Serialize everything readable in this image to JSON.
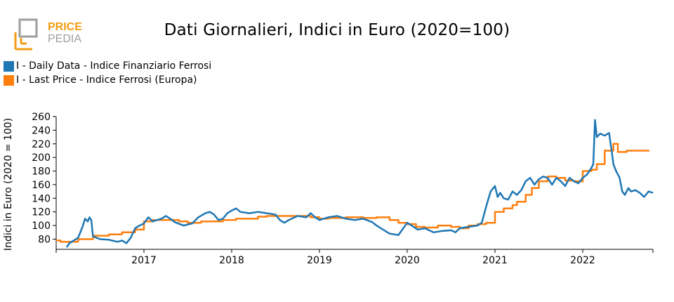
{
  "logo": {
    "word1": "PRICE",
    "word2": "PEDIA"
  },
  "chart_data": {
    "type": "line",
    "title": "Dati Giornalieri, Indici in Euro (2020=100)",
    "xlabel": "",
    "ylabel": "Indici in Euro (2020 = 100)",
    "ylim": [
      65,
      260
    ],
    "yticks": [
      80,
      100,
      120,
      140,
      160,
      180,
      200,
      220,
      240,
      260
    ],
    "xlim": [
      2016.0,
      2022.8
    ],
    "xticks": [
      2017,
      2018,
      2019,
      2020,
      2021,
      2022
    ],
    "xtick_labels": [
      "2017",
      "2018",
      "2019",
      "2020",
      "2021",
      "2022"
    ],
    "grid": false,
    "legend_position": "top-left",
    "series": [
      {
        "name": "I - Daily Data - Indice Finanziario Ferrosi",
        "color": "#1f77b4",
        "style": "line",
        "points": [
          [
            2016.12,
            68
          ],
          [
            2016.15,
            74
          ],
          [
            2016.2,
            78
          ],
          [
            2016.25,
            82
          ],
          [
            2016.3,
            98
          ],
          [
            2016.33,
            110
          ],
          [
            2016.36,
            106
          ],
          [
            2016.38,
            112
          ],
          [
            2016.4,
            108
          ],
          [
            2016.42,
            84
          ],
          [
            2016.5,
            80
          ],
          [
            2016.6,
            79
          ],
          [
            2016.7,
            76
          ],
          [
            2016.75,
            78
          ],
          [
            2016.8,
            74
          ],
          [
            2016.85,
            82
          ],
          [
            2016.9,
            96
          ],
          [
            2016.95,
            100
          ],
          [
            2017.0,
            103
          ],
          [
            2017.05,
            112
          ],
          [
            2017.1,
            106
          ],
          [
            2017.15,
            108
          ],
          [
            2017.2,
            110
          ],
          [
            2017.25,
            114
          ],
          [
            2017.3,
            110
          ],
          [
            2017.35,
            105
          ],
          [
            2017.45,
            100
          ],
          [
            2017.55,
            103
          ],
          [
            2017.62,
            112
          ],
          [
            2017.7,
            118
          ],
          [
            2017.75,
            120
          ],
          [
            2017.8,
            116
          ],
          [
            2017.85,
            108
          ],
          [
            2017.9,
            110
          ],
          [
            2017.95,
            118
          ],
          [
            2018.0,
            122
          ],
          [
            2018.05,
            125
          ],
          [
            2018.1,
            120
          ],
          [
            2018.2,
            118
          ],
          [
            2018.3,
            120
          ],
          [
            2018.4,
            118
          ],
          [
            2018.5,
            116
          ],
          [
            2018.55,
            108
          ],
          [
            2018.6,
            104
          ],
          [
            2018.65,
            108
          ],
          [
            2018.75,
            114
          ],
          [
            2018.85,
            112
          ],
          [
            2018.9,
            118
          ],
          [
            2018.95,
            112
          ],
          [
            2019.0,
            108
          ],
          [
            2019.1,
            112
          ],
          [
            2019.2,
            114
          ],
          [
            2019.3,
            110
          ],
          [
            2019.4,
            108
          ],
          [
            2019.5,
            110
          ],
          [
            2019.6,
            105
          ],
          [
            2019.65,
            100
          ],
          [
            2019.7,
            96
          ],
          [
            2019.8,
            88
          ],
          [
            2019.9,
            86
          ],
          [
            2020.0,
            104
          ],
          [
            2020.05,
            100
          ],
          [
            2020.12,
            94
          ],
          [
            2020.2,
            96
          ],
          [
            2020.3,
            90
          ],
          [
            2020.4,
            92
          ],
          [
            2020.5,
            93
          ],
          [
            2020.55,
            90
          ],
          [
            2020.6,
            96
          ],
          [
            2020.7,
            98
          ],
          [
            2020.8,
            100
          ],
          [
            2020.85,
            104
          ],
          [
            2020.9,
            128
          ],
          [
            2020.95,
            150
          ],
          [
            2021.0,
            158
          ],
          [
            2021.03,
            142
          ],
          [
            2021.06,
            148
          ],
          [
            2021.1,
            140
          ],
          [
            2021.15,
            138
          ],
          [
            2021.2,
            150
          ],
          [
            2021.25,
            145
          ],
          [
            2021.3,
            152
          ],
          [
            2021.35,
            165
          ],
          [
            2021.4,
            170
          ],
          [
            2021.45,
            160
          ],
          [
            2021.5,
            168
          ],
          [
            2021.55,
            172
          ],
          [
            2021.6,
            170
          ],
          [
            2021.65,
            160
          ],
          [
            2021.7,
            170
          ],
          [
            2021.75,
            165
          ],
          [
            2021.8,
            158
          ],
          [
            2021.85,
            170
          ],
          [
            2021.9,
            165
          ],
          [
            2021.95,
            162
          ],
          [
            2022.0,
            170
          ],
          [
            2022.05,
            175
          ],
          [
            2022.1,
            185
          ],
          [
            2022.12,
            190
          ],
          [
            2022.14,
            255
          ],
          [
            2022.16,
            230
          ],
          [
            2022.2,
            235
          ],
          [
            2022.25,
            232
          ],
          [
            2022.3,
            236
          ],
          [
            2022.33,
            210
          ],
          [
            2022.35,
            190
          ],
          [
            2022.38,
            180
          ],
          [
            2022.42,
            170
          ],
          [
            2022.45,
            150
          ],
          [
            2022.48,
            145
          ],
          [
            2022.52,
            155
          ],
          [
            2022.55,
            150
          ],
          [
            2022.6,
            152
          ],
          [
            2022.65,
            148
          ],
          [
            2022.7,
            142
          ],
          [
            2022.75,
            150
          ],
          [
            2022.8,
            148
          ]
        ]
      },
      {
        "name": "I - Last Price - Indice Ferrosi (Europa)",
        "color": "#ff7f0e",
        "style": "step",
        "points": [
          [
            2016.0,
            78
          ],
          [
            2016.05,
            76
          ],
          [
            2016.25,
            80
          ],
          [
            2016.42,
            85
          ],
          [
            2016.6,
            87
          ],
          [
            2016.75,
            90
          ],
          [
            2016.9,
            94
          ],
          [
            2017.0,
            106
          ],
          [
            2017.1,
            108
          ],
          [
            2017.25,
            108
          ],
          [
            2017.4,
            106
          ],
          [
            2017.5,
            104
          ],
          [
            2017.65,
            106
          ],
          [
            2017.8,
            106
          ],
          [
            2017.9,
            108
          ],
          [
            2018.05,
            110
          ],
          [
            2018.2,
            110
          ],
          [
            2018.3,
            113
          ],
          [
            2018.4,
            114
          ],
          [
            2018.55,
            114
          ],
          [
            2018.7,
            114
          ],
          [
            2018.9,
            112
          ],
          [
            2019.0,
            110
          ],
          [
            2019.1,
            111
          ],
          [
            2019.3,
            112
          ],
          [
            2019.5,
            111
          ],
          [
            2019.65,
            112
          ],
          [
            2019.8,
            108
          ],
          [
            2019.9,
            104
          ],
          [
            2020.0,
            102
          ],
          [
            2020.1,
            98
          ],
          [
            2020.2,
            97
          ],
          [
            2020.35,
            100
          ],
          [
            2020.5,
            98
          ],
          [
            2020.6,
            96
          ],
          [
            2020.7,
            100
          ],
          [
            2020.8,
            102
          ],
          [
            2020.9,
            104
          ],
          [
            2021.0,
            120
          ],
          [
            2021.1,
            125
          ],
          [
            2021.2,
            130
          ],
          [
            2021.25,
            135
          ],
          [
            2021.35,
            145
          ],
          [
            2021.42,
            155
          ],
          [
            2021.5,
            165
          ],
          [
            2021.6,
            172
          ],
          [
            2021.7,
            170
          ],
          [
            2021.8,
            166
          ],
          [
            2021.9,
            165
          ],
          [
            2022.0,
            180
          ],
          [
            2022.1,
            182
          ],
          [
            2022.16,
            190
          ],
          [
            2022.25,
            210
          ],
          [
            2022.35,
            220
          ],
          [
            2022.4,
            208
          ],
          [
            2022.5,
            210
          ],
          [
            2022.75,
            211
          ]
        ]
      }
    ]
  }
}
